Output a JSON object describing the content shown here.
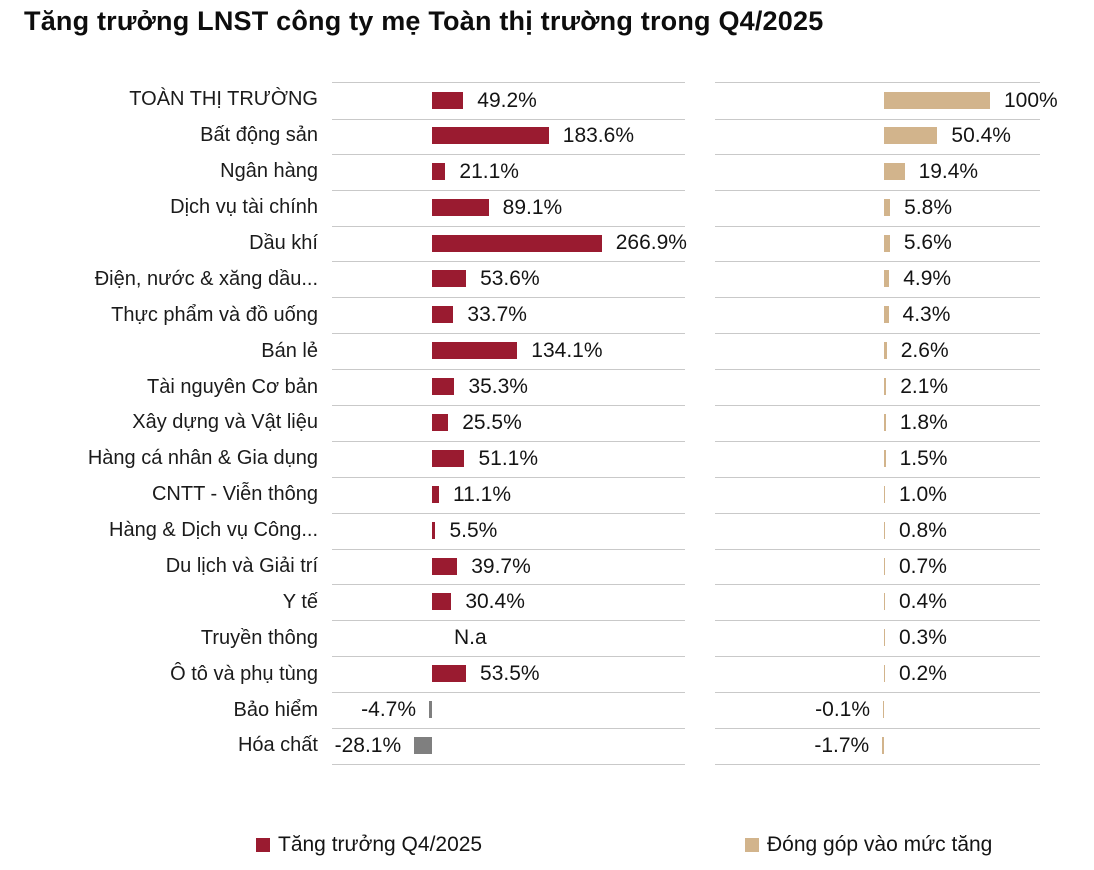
{
  "title": "Tăng trưởng LNST công ty mẹ Toàn thị trường trong Q4/2025",
  "colors": {
    "growth_bar": "#9a1b30",
    "growth_negative_bar": "#7f7f7f",
    "contribution_bar": "#d2b48c",
    "grid_line": "#c9c9c9",
    "text": "#141414"
  },
  "legend": [
    {
      "label": "Tăng trưởng Q4/2025",
      "color": "#9a1b30"
    },
    {
      "label": "Đóng góp vào mức tăng",
      "color": "#d2b48c"
    }
  ],
  "chart_data": {
    "type": "bar",
    "orientation": "horizontal",
    "grid": "row-separators",
    "legend_position": "bottom",
    "value_suffix": "%",
    "na_label": "N.a",
    "categories": [
      "TOÀN THỊ TRƯỜNG",
      "Bất động sản",
      "Ngân hàng",
      "Dịch vụ tài chính",
      "Dầu khí",
      "Điện, nước & xăng dầu...",
      "Thực phẩm và đồ uống",
      "Bán lẻ",
      "Tài nguyên Cơ bản",
      "Xây dựng và Vật liệu",
      "Hàng cá nhân & Gia dụng",
      "CNTT - Viễn thông",
      "Hàng & Dịch vụ Công...",
      "Du lịch và Giải trí",
      "Y tế",
      "Truyền thông",
      "Ô tô và phụ tùng",
      "Bảo hiểm",
      "Hóa chất"
    ],
    "series": [
      {
        "name": "Tăng trưởng Q4/2025",
        "color": "#9a1b30",
        "negative_color": "#7f7f7f",
        "values": [
          49.2,
          183.6,
          21.1,
          89.1,
          266.9,
          53.6,
          33.7,
          134.1,
          35.3,
          25.5,
          51.1,
          11.1,
          5.5,
          39.7,
          30.4,
          null,
          53.5,
          -4.7,
          -28.1
        ],
        "labels": [
          "49.2%",
          "183.6%",
          "21.1%",
          "89.1%",
          "266.9%",
          "53.6%",
          "33.7%",
          "134.1%",
          "35.3%",
          "25.5%",
          "51.1%",
          "11.1%",
          "5.5%",
          "39.7%",
          "30.4%",
          "N.a",
          "53.5%",
          "-4.7%",
          "-28.1%"
        ]
      },
      {
        "name": "Đóng góp vào mức tăng",
        "color": "#d2b48c",
        "values": [
          100,
          50.4,
          19.4,
          5.8,
          5.6,
          4.9,
          4.3,
          2.6,
          2.1,
          1.8,
          1.5,
          1.0,
          0.8,
          0.7,
          0.4,
          0.3,
          0.2,
          -0.1,
          -1.7
        ],
        "labels": [
          "100%",
          "50.4%",
          "19.4%",
          "5.8%",
          "5.6%",
          "4.9%",
          "4.3%",
          "2.6%",
          "2.1%",
          "1.8%",
          "1.5%",
          "1.0%",
          "0.8%",
          "0.7%",
          "0.4%",
          "0.3%",
          "0.2%",
          "-0.1%",
          "-1.7%"
        ]
      }
    ]
  }
}
